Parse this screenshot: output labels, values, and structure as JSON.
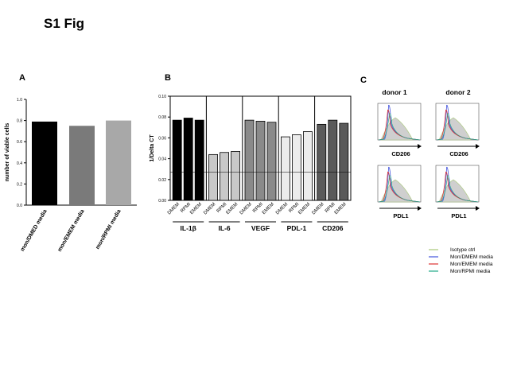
{
  "figure_title": "S1 Fig",
  "panels": {
    "a": "A",
    "b": "B",
    "c": "C"
  },
  "chart_data": [
    {
      "panel": "A",
      "type": "bar",
      "categories": [
        "mon/DMED media",
        "mon/EMEM media",
        "mon/RPMI media"
      ],
      "values": [
        0.79,
        0.75,
        0.8
      ],
      "colors": [
        "#000000",
        "#7a7a7a",
        "#a8a8a8"
      ],
      "ylabel": "number of viable cells",
      "ylim": [
        0,
        1.0
      ],
      "yticks": [
        "0.0",
        "0.2",
        "0.4",
        "0.6",
        "0.8",
        "1.0"
      ]
    },
    {
      "panel": "B",
      "type": "bar",
      "ylabel": "1/Delta CT",
      "ylim": [
        0,
        0.1
      ],
      "yticks": [
        "0.00",
        "0.02",
        "0.04",
        "0.06",
        "0.08",
        "0.10"
      ],
      "reference_line": 0.027,
      "groups": [
        {
          "name": "IL-1β",
          "categories": [
            "DMEM",
            "RPMI",
            "EMEM"
          ],
          "values": [
            0.077,
            0.079,
            0.077
          ],
          "color": "#000000"
        },
        {
          "name": "IL-6",
          "categories": [
            "DMEM",
            "RPMI",
            "EMEM"
          ],
          "values": [
            0.044,
            0.046,
            0.047
          ],
          "color": "#c8c8c8"
        },
        {
          "name": "VEGF",
          "categories": [
            "DMEM",
            "RPMI",
            "EMEM"
          ],
          "values": [
            0.077,
            0.076,
            0.075
          ],
          "color": "#8a8a8a"
        },
        {
          "name": "PDL-1",
          "categories": [
            "DMEM",
            "RPMI",
            "EMEM"
          ],
          "values": [
            0.061,
            0.063,
            0.066
          ],
          "color": "#ececec"
        },
        {
          "name": "CD206",
          "categories": [
            "DMEM",
            "RPMI",
            "EMEM"
          ],
          "values": [
            0.073,
            0.077,
            0.074
          ],
          "color": "#5a5a5a"
        }
      ]
    },
    {
      "panel": "C",
      "type": "histogram-overlay",
      "columns": [
        "donor 1",
        "donor 2"
      ],
      "rows": [
        "CD206",
        "PDL1"
      ],
      "legend": [
        {
          "label": "Isotype ctrl",
          "color": "#a8c878"
        },
        {
          "label": "Mon/DMEM media",
          "color": "#4455dd"
        },
        {
          "label": "Mon/EMEM media",
          "color": "#dd3333"
        },
        {
          "label": "Mon/RPMI media",
          "color": "#22aa88"
        }
      ]
    }
  ]
}
